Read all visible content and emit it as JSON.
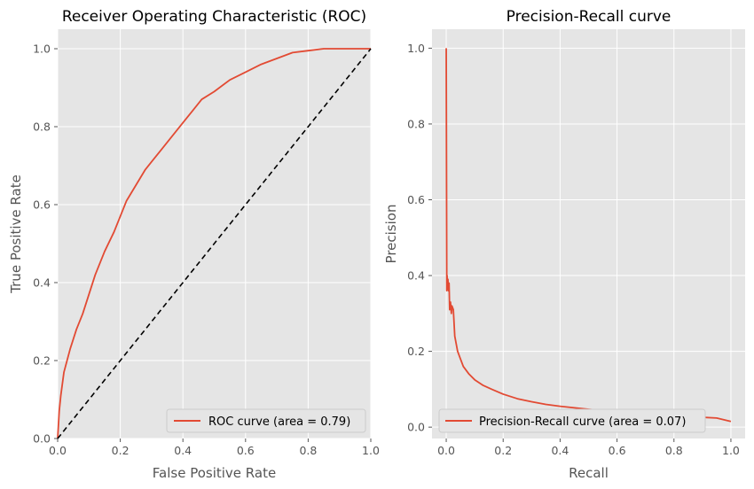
{
  "colors": {
    "plot_background": "#e5e5e5",
    "grid": "#ffffff",
    "curve": "#e24a33",
    "diagonal": "#000000",
    "text": "#555555"
  },
  "chart_data": [
    {
      "type": "line",
      "title": "Receiver Operating Characteristic (ROC)",
      "xlabel": "False Positive Rate",
      "ylabel": "True Positive Rate",
      "xlim": [
        0.0,
        1.0
      ],
      "ylim": [
        0.0,
        1.05
      ],
      "xticks": [
        "0.0",
        "0.2",
        "0.4",
        "0.6",
        "0.8",
        "1.0"
      ],
      "yticks": [
        "0.0",
        "0.2",
        "0.4",
        "0.6",
        "0.8",
        "1.0"
      ],
      "xtick_values": [
        0,
        0.2,
        0.4,
        0.6,
        0.8,
        1.0
      ],
      "ytick_values": [
        0,
        0.2,
        0.4,
        0.6,
        0.8,
        1.0
      ],
      "grid": true,
      "legend_position": "lower-right",
      "series": [
        {
          "name": "ROC curve (area = 0.79)",
          "style": "solid",
          "x": [
            0,
            0.005,
            0.01,
            0.02,
            0.03,
            0.04,
            0.06,
            0.08,
            0.1,
            0.12,
            0.15,
            0.18,
            0.2,
            0.22,
            0.25,
            0.28,
            0.3,
            0.33,
            0.36,
            0.4,
            0.43,
            0.46,
            0.5,
            0.55,
            0.6,
            0.65,
            0.7,
            0.75,
            0.8,
            0.85,
            0.9,
            0.95,
            1.0
          ],
          "y": [
            0,
            0.07,
            0.11,
            0.17,
            0.2,
            0.23,
            0.28,
            0.32,
            0.37,
            0.42,
            0.48,
            0.53,
            0.57,
            0.61,
            0.65,
            0.69,
            0.71,
            0.74,
            0.77,
            0.81,
            0.84,
            0.87,
            0.89,
            0.92,
            0.94,
            0.96,
            0.975,
            0.99,
            0.995,
            1.0,
            1.0,
            1.0,
            1.0
          ]
        },
        {
          "style": "dashed",
          "x": [
            0,
            1
          ],
          "y": [
            0,
            1
          ]
        }
      ]
    },
    {
      "type": "line",
      "title": "Precision-Recall curve",
      "xlabel": "Recall",
      "ylabel": "Precision",
      "xlim": [
        -0.05,
        1.05
      ],
      "ylim": [
        -0.03,
        1.05
      ],
      "xticks": [
        "0.0",
        "0.2",
        "0.4",
        "0.6",
        "0.8",
        "1.0"
      ],
      "yticks": [
        "0.0",
        "0.2",
        "0.4",
        "0.6",
        "0.8",
        "1.0"
      ],
      "xtick_values": [
        0,
        0.2,
        0.4,
        0.6,
        0.8,
        1.0
      ],
      "ytick_values": [
        0,
        0.2,
        0.4,
        0.6,
        0.8,
        1.0
      ],
      "grid": true,
      "legend_position": "lower-left",
      "series": [
        {
          "name": "Precision-Recall curve (area = 0.07)",
          "style": "solid",
          "x": [
            0.0,
            0.002,
            0.003,
            0.004,
            0.006,
            0.008,
            0.01,
            0.012,
            0.015,
            0.018,
            0.02,
            0.025,
            0.03,
            0.035,
            0.04,
            0.05,
            0.06,
            0.08,
            0.1,
            0.13,
            0.16,
            0.2,
            0.25,
            0.3,
            0.35,
            0.4,
            0.5,
            0.6,
            0.7,
            0.8,
            0.9,
            0.95,
            1.0
          ],
          "y": [
            1.0,
            0.36,
            0.4,
            0.37,
            0.39,
            0.36,
            0.38,
            0.31,
            0.33,
            0.3,
            0.32,
            0.31,
            0.24,
            0.22,
            0.2,
            0.18,
            0.16,
            0.14,
            0.125,
            0.11,
            0.1,
            0.087,
            0.075,
            0.067,
            0.06,
            0.055,
            0.047,
            0.04,
            0.035,
            0.03,
            0.026,
            0.024,
            0.015
          ]
        }
      ]
    }
  ]
}
